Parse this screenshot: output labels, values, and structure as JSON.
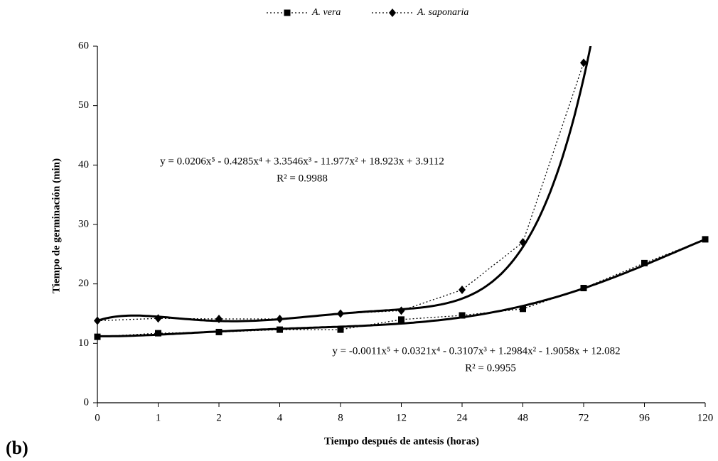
{
  "chart_data": {
    "type": "line",
    "x_label": "Tiempo después de antesis (horas)",
    "y_label": "Tiempo de germinación (min)",
    "panel_label": "(b)",
    "categories": [
      "0",
      "1",
      "2",
      "4",
      "8",
      "12",
      "24",
      "48",
      "72",
      "96",
      "120"
    ],
    "ylim": [
      0,
      60
    ],
    "yticks": [
      0,
      10,
      20,
      30,
      40,
      50,
      60
    ],
    "grid": false,
    "legend": "top",
    "series": [
      {
        "name": "A. vera",
        "color": "#000000",
        "marker": "square",
        "values": [
          11.1,
          11.7,
          11.9,
          12.3,
          12.3,
          14.0,
          14.7,
          15.8,
          19.3,
          23.5,
          27.5
        ],
        "trendline": [
          -0.0011,
          0.0321,
          -0.3107,
          1.2984,
          -1.9058,
          12.082
        ],
        "equation": "y = -0.0011x⁵ + 0.0321x⁴ - 0.3107x³ + 1.2984x² - 1.9058x + 12.082",
        "r2": "R² = 0.9955"
      },
      {
        "name": "A. saponaria",
        "color": "#000000",
        "marker": "diamond",
        "values": [
          13.8,
          14.2,
          14.1,
          14.1,
          15.0,
          15.5,
          19.0,
          27.0,
          57.2,
          null,
          null
        ],
        "trendline": [
          0.0206,
          -0.4285,
          3.3546,
          -11.977,
          18.923,
          3.9112
        ],
        "equation": "y = 0.0206x⁵ - 0.4285x⁴ + 3.3546x³ - 11.977x² + 18.923x + 3.9112",
        "r2": "R² = 0.9988"
      }
    ]
  }
}
